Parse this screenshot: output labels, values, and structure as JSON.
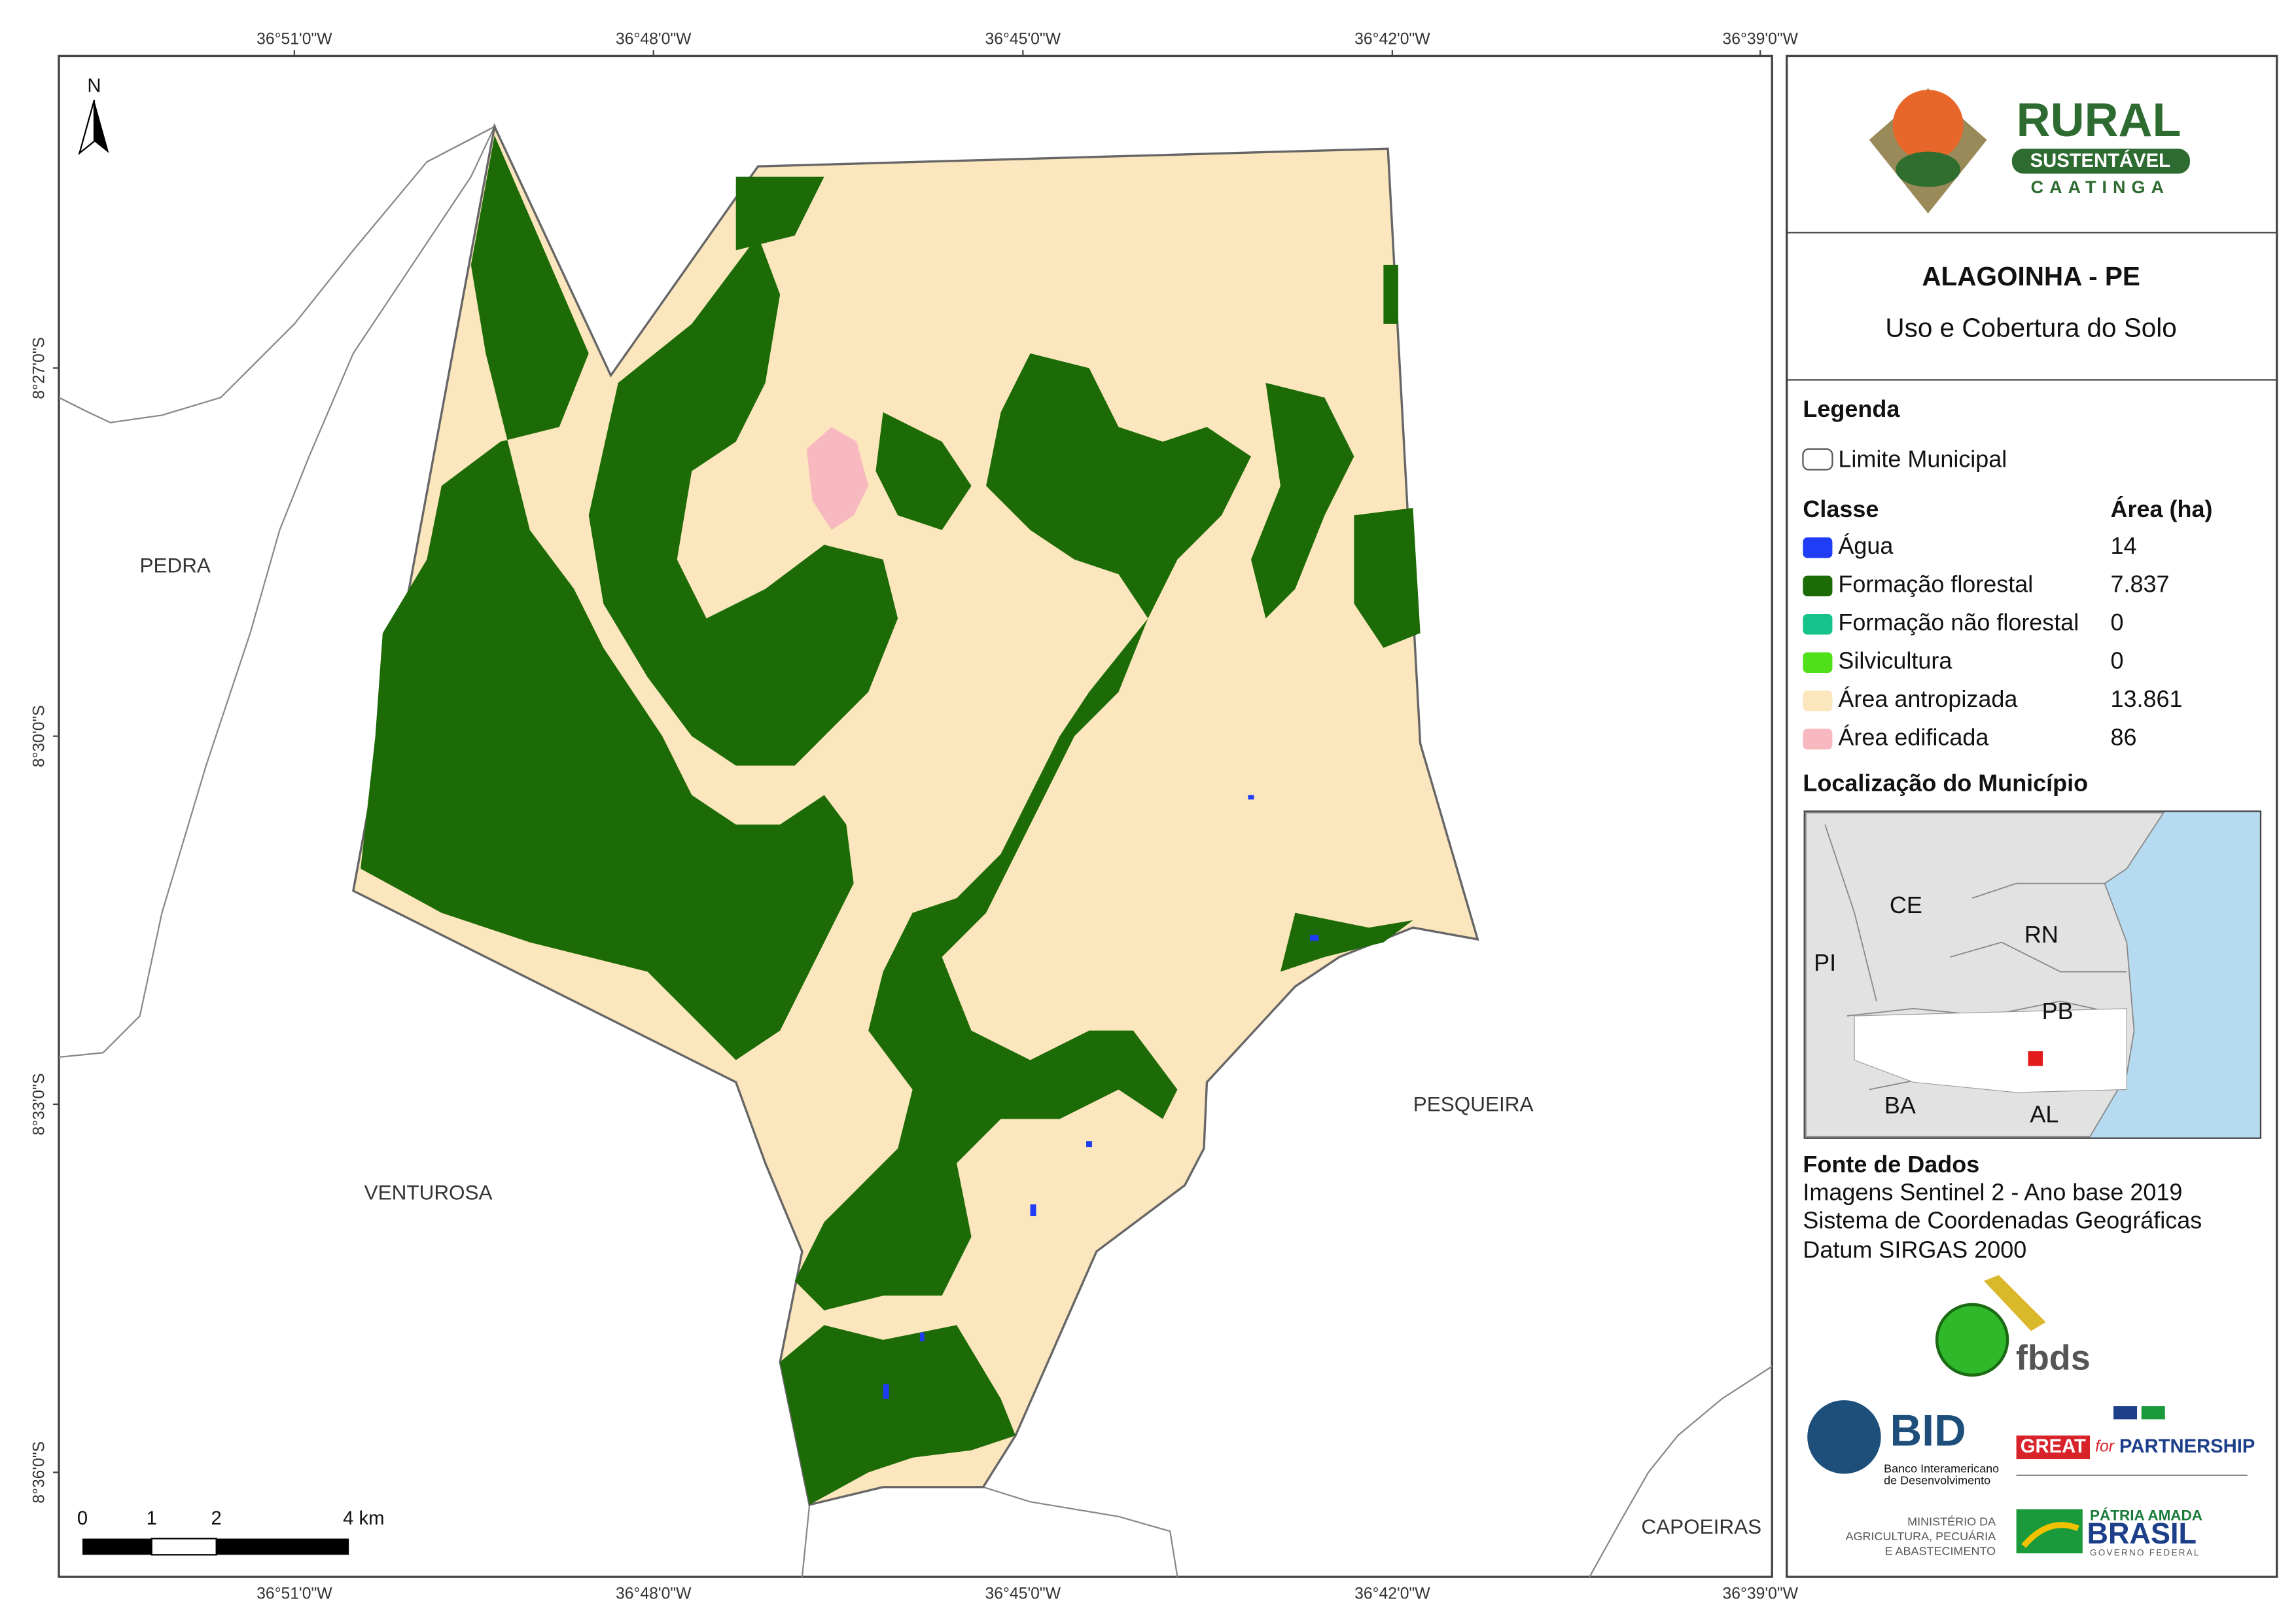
{
  "map": {
    "north_arrow": "N",
    "graticule": {
      "longitudes": [
        "36°51'0\"W",
        "36°48'0\"W",
        "36°45'0\"W",
        "36°42'0\"W",
        "36°39'0\"W"
      ],
      "latitudes": [
        "8°27'0\"S",
        "8°30'0\"S",
        "8°33'0\"S",
        "8°36'0\"S"
      ]
    },
    "neighbors": [
      "PEDRA",
      "VENTUROSA",
      "PESQUEIRA",
      "CAPOEIRAS"
    ],
    "scale_bar": [
      "0",
      "1",
      "2",
      "4 km"
    ]
  },
  "panel": {
    "logo": {
      "title": "RURAL",
      "ribbon": "SUSTENTÁVEL",
      "subtitle": "CAATINGA"
    },
    "title": "ALAGOINHA - PE",
    "subtitle": "Uso e Cobertura do Solo",
    "legend": {
      "title": "Legenda",
      "boundary": "Limite Municipal",
      "class_header": "Classe",
      "area_header": "Área (ha)",
      "classes": [
        {
          "name": "Água",
          "area": "14",
          "color": "#1f3df5"
        },
        {
          "name": "Formação florestal",
          "area": "7.837",
          "color": "#1d6b07"
        },
        {
          "name": "Formação não florestal",
          "area": "0",
          "color": "#14c28a"
        },
        {
          "name": "Silvicultura",
          "area": "0",
          "color": "#4fe01a"
        },
        {
          "name": "Área antropizada",
          "area": "13.861",
          "color": "#fbe6bd"
        },
        {
          "name": "Área edificada",
          "area": "86",
          "color": "#f7b9bf"
        }
      ]
    },
    "location": {
      "title": "Localização do Município",
      "states": [
        "CE",
        "RN",
        "PI",
        "PB",
        "BA",
        "AL"
      ]
    },
    "sources": {
      "title": "Fonte de Dados",
      "lines": [
        "Imagens Sentinel 2 - Ano base 2019",
        "Sistema de Coordenadas Geográficas",
        "Datum SIRGAS 2000"
      ]
    },
    "partners": {
      "fbds": "fbds",
      "bid": "BID",
      "bid_name": [
        "Banco Interamericano",
        "de Desenvolvimento"
      ],
      "great": "GREAT",
      "for": "for",
      "partnership": "PARTNERSHIP",
      "ministry": [
        "MINISTÉRIO DA",
        "AGRICULTURA, PECUÁRIA",
        "E ABASTECIMENTO"
      ],
      "patria": "PÁTRIA AMADA",
      "brasil": "BRASIL",
      "governo": "GOVERNO FEDERAL"
    }
  }
}
